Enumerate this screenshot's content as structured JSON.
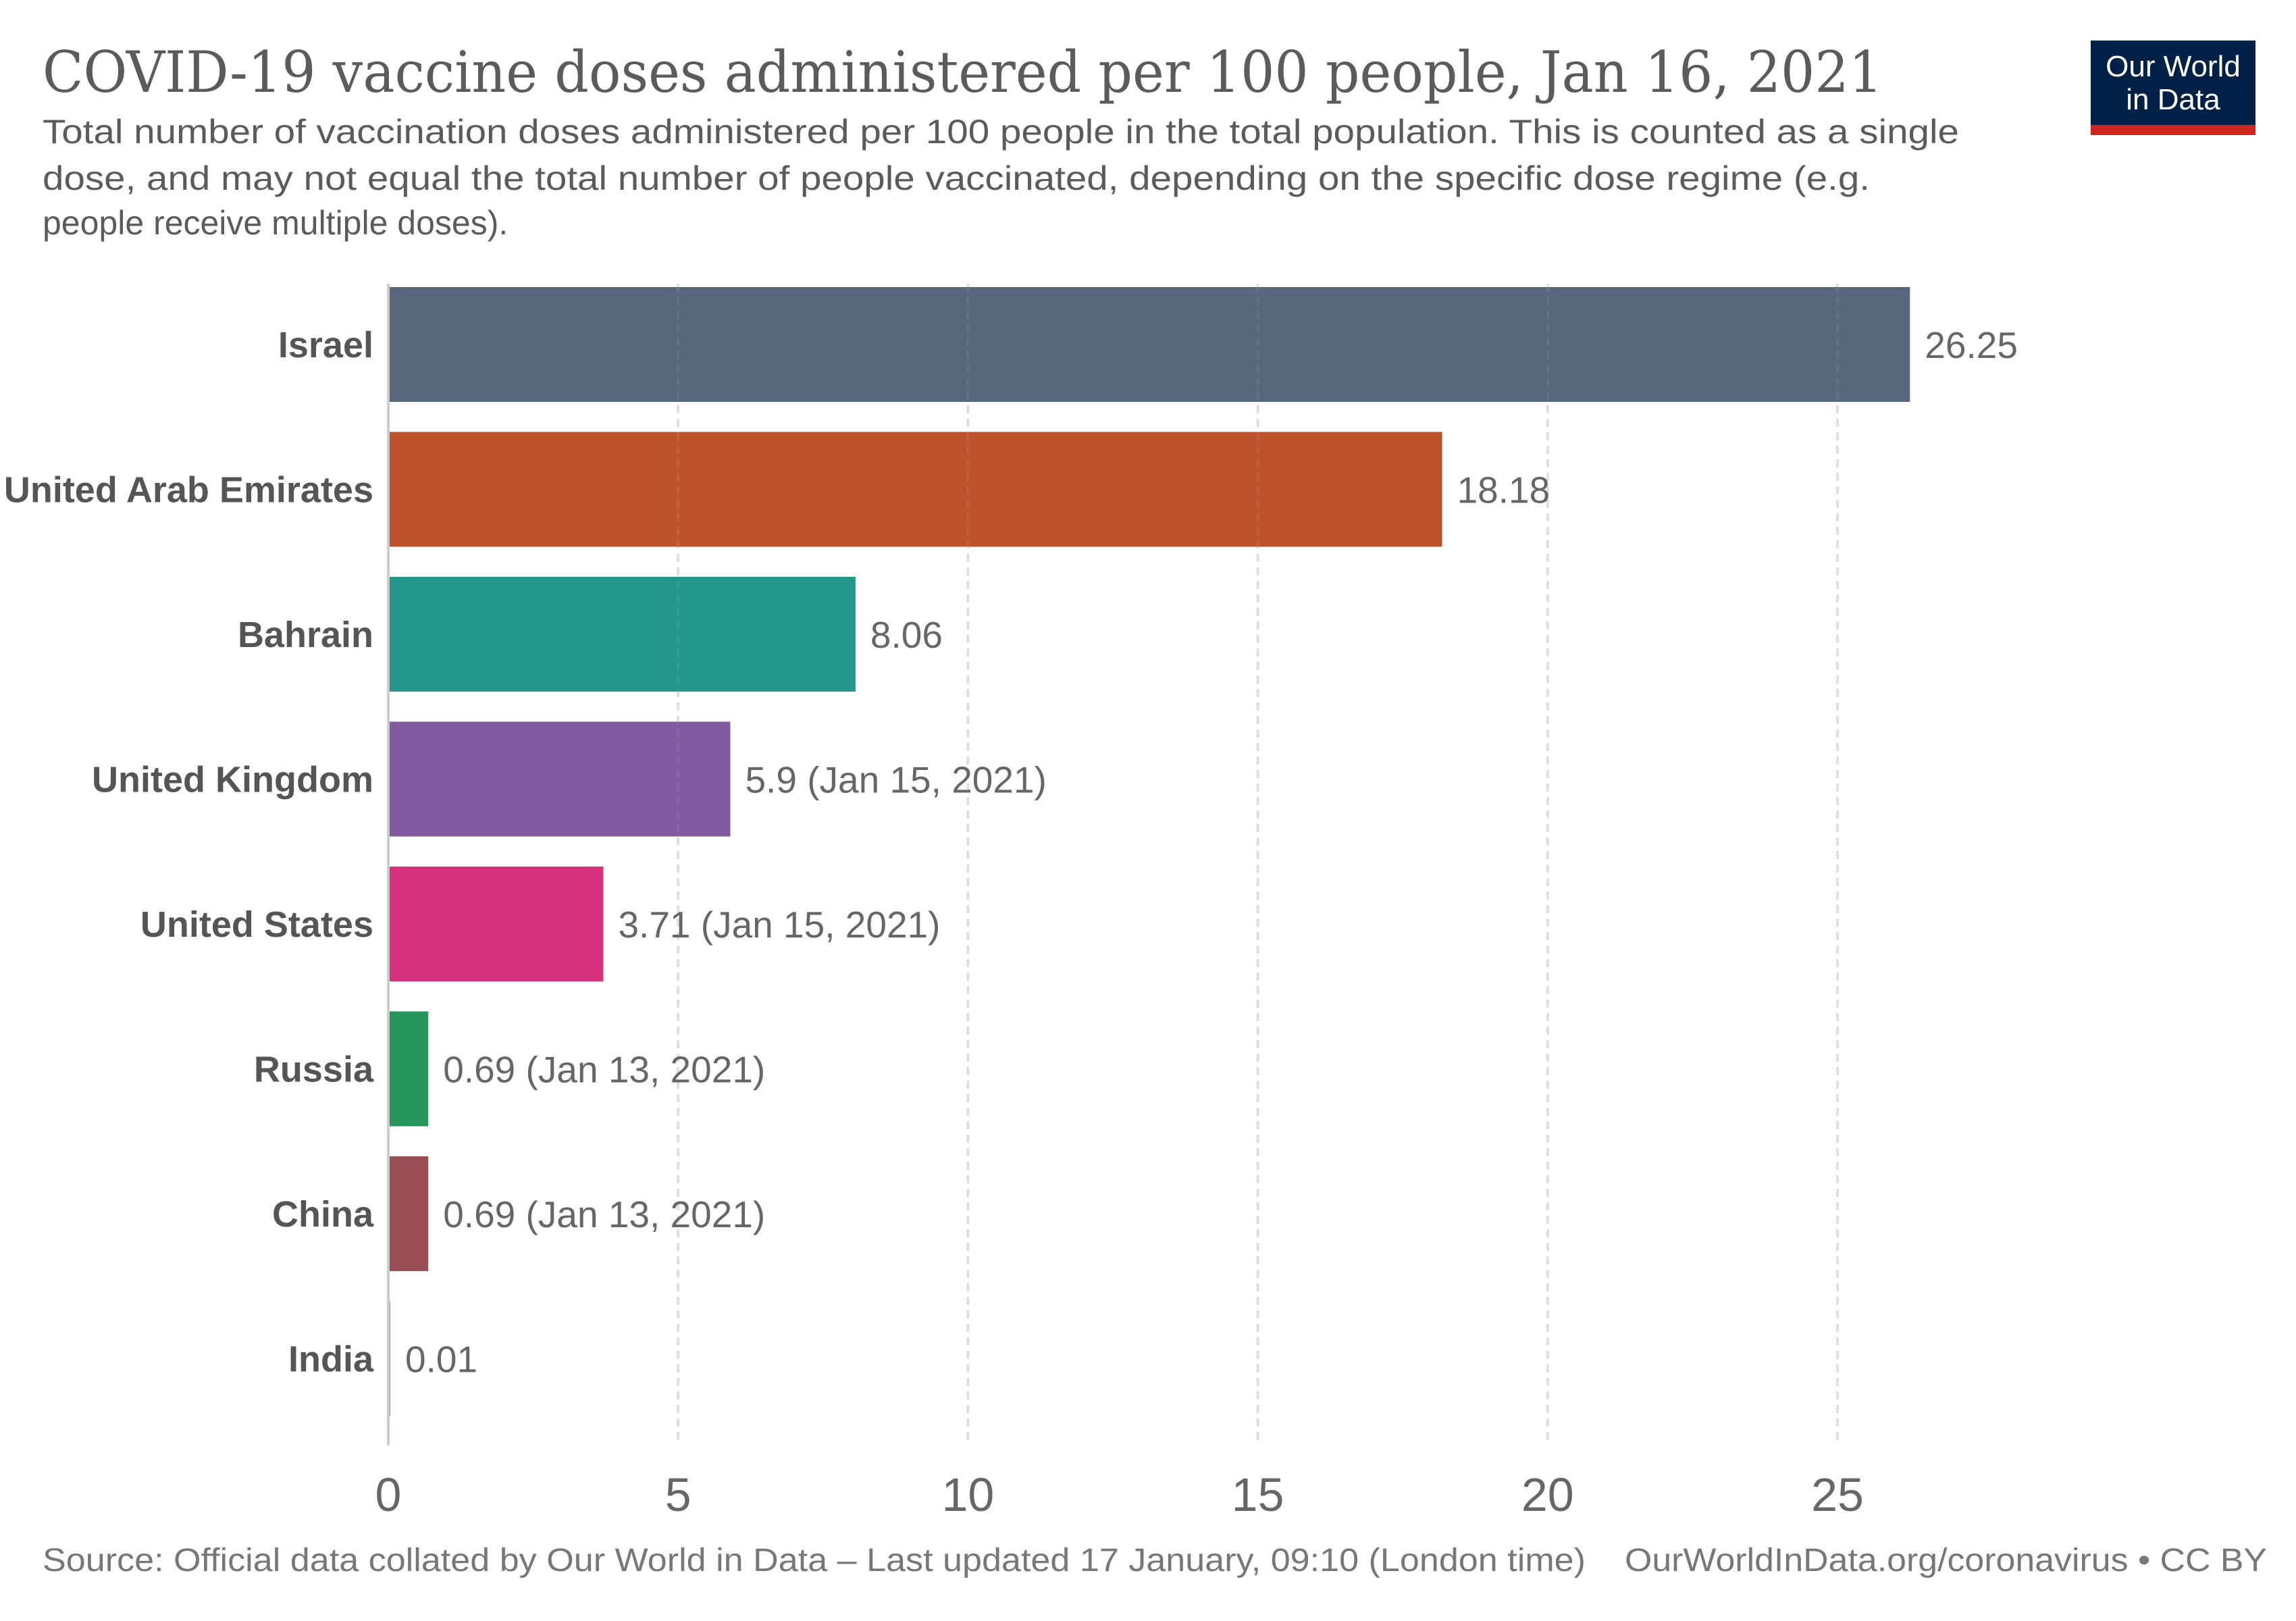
{
  "header": {
    "title": "COVID-19 vaccine doses administered per 100 people, Jan 16, 2021",
    "subtitle_lines": [
      "Total number of vaccination doses administered per 100 people in the total population. This is counted as a single",
      "dose, and may not equal the total number of people vaccinated, depending on the specific dose regime (e.g.",
      "people receive multiple doses)."
    ]
  },
  "logo": {
    "line1": "Our World",
    "line2": "in Data",
    "background_color": "#002147",
    "accent_color": "#ce261e"
  },
  "footer": {
    "source": "Source: Official data collated by Our World in Data – Last updated 17 January, 09:10 (London time)",
    "link": "OurWorldInData.org/coronavirus • CC BY"
  },
  "chart_data": {
    "type": "bar",
    "orientation": "horizontal",
    "title": "COVID-19 vaccine doses administered per 100 people, Jan 16, 2021",
    "xlabel": "",
    "ylabel": "",
    "xlim": [
      0,
      27
    ],
    "xticks": [
      0,
      5,
      10,
      15,
      20,
      25
    ],
    "grid": "vertical dashed",
    "legend": "none",
    "categories": [
      "Israel",
      "United Arab Emirates",
      "Bahrain",
      "United Kingdom",
      "United States",
      "Russia",
      "China",
      "India"
    ],
    "values": [
      26.25,
      18.18,
      8.06,
      5.9,
      3.71,
      0.69,
      0.69,
      0.01
    ],
    "value_labels": [
      "26.25",
      "18.18",
      "8.06",
      "5.9 (Jan 15, 2021)",
      "3.71 (Jan 15, 2021)",
      "0.69 (Jan 13, 2021)",
      "0.69 (Jan 13, 2021)",
      "0.01"
    ],
    "colors": [
      "#58677c",
      "#bc532c",
      "#25968d",
      "#825a9f",
      "#d5317c",
      "#26955b",
      "#9a4f55",
      "#8ea0b8"
    ]
  }
}
